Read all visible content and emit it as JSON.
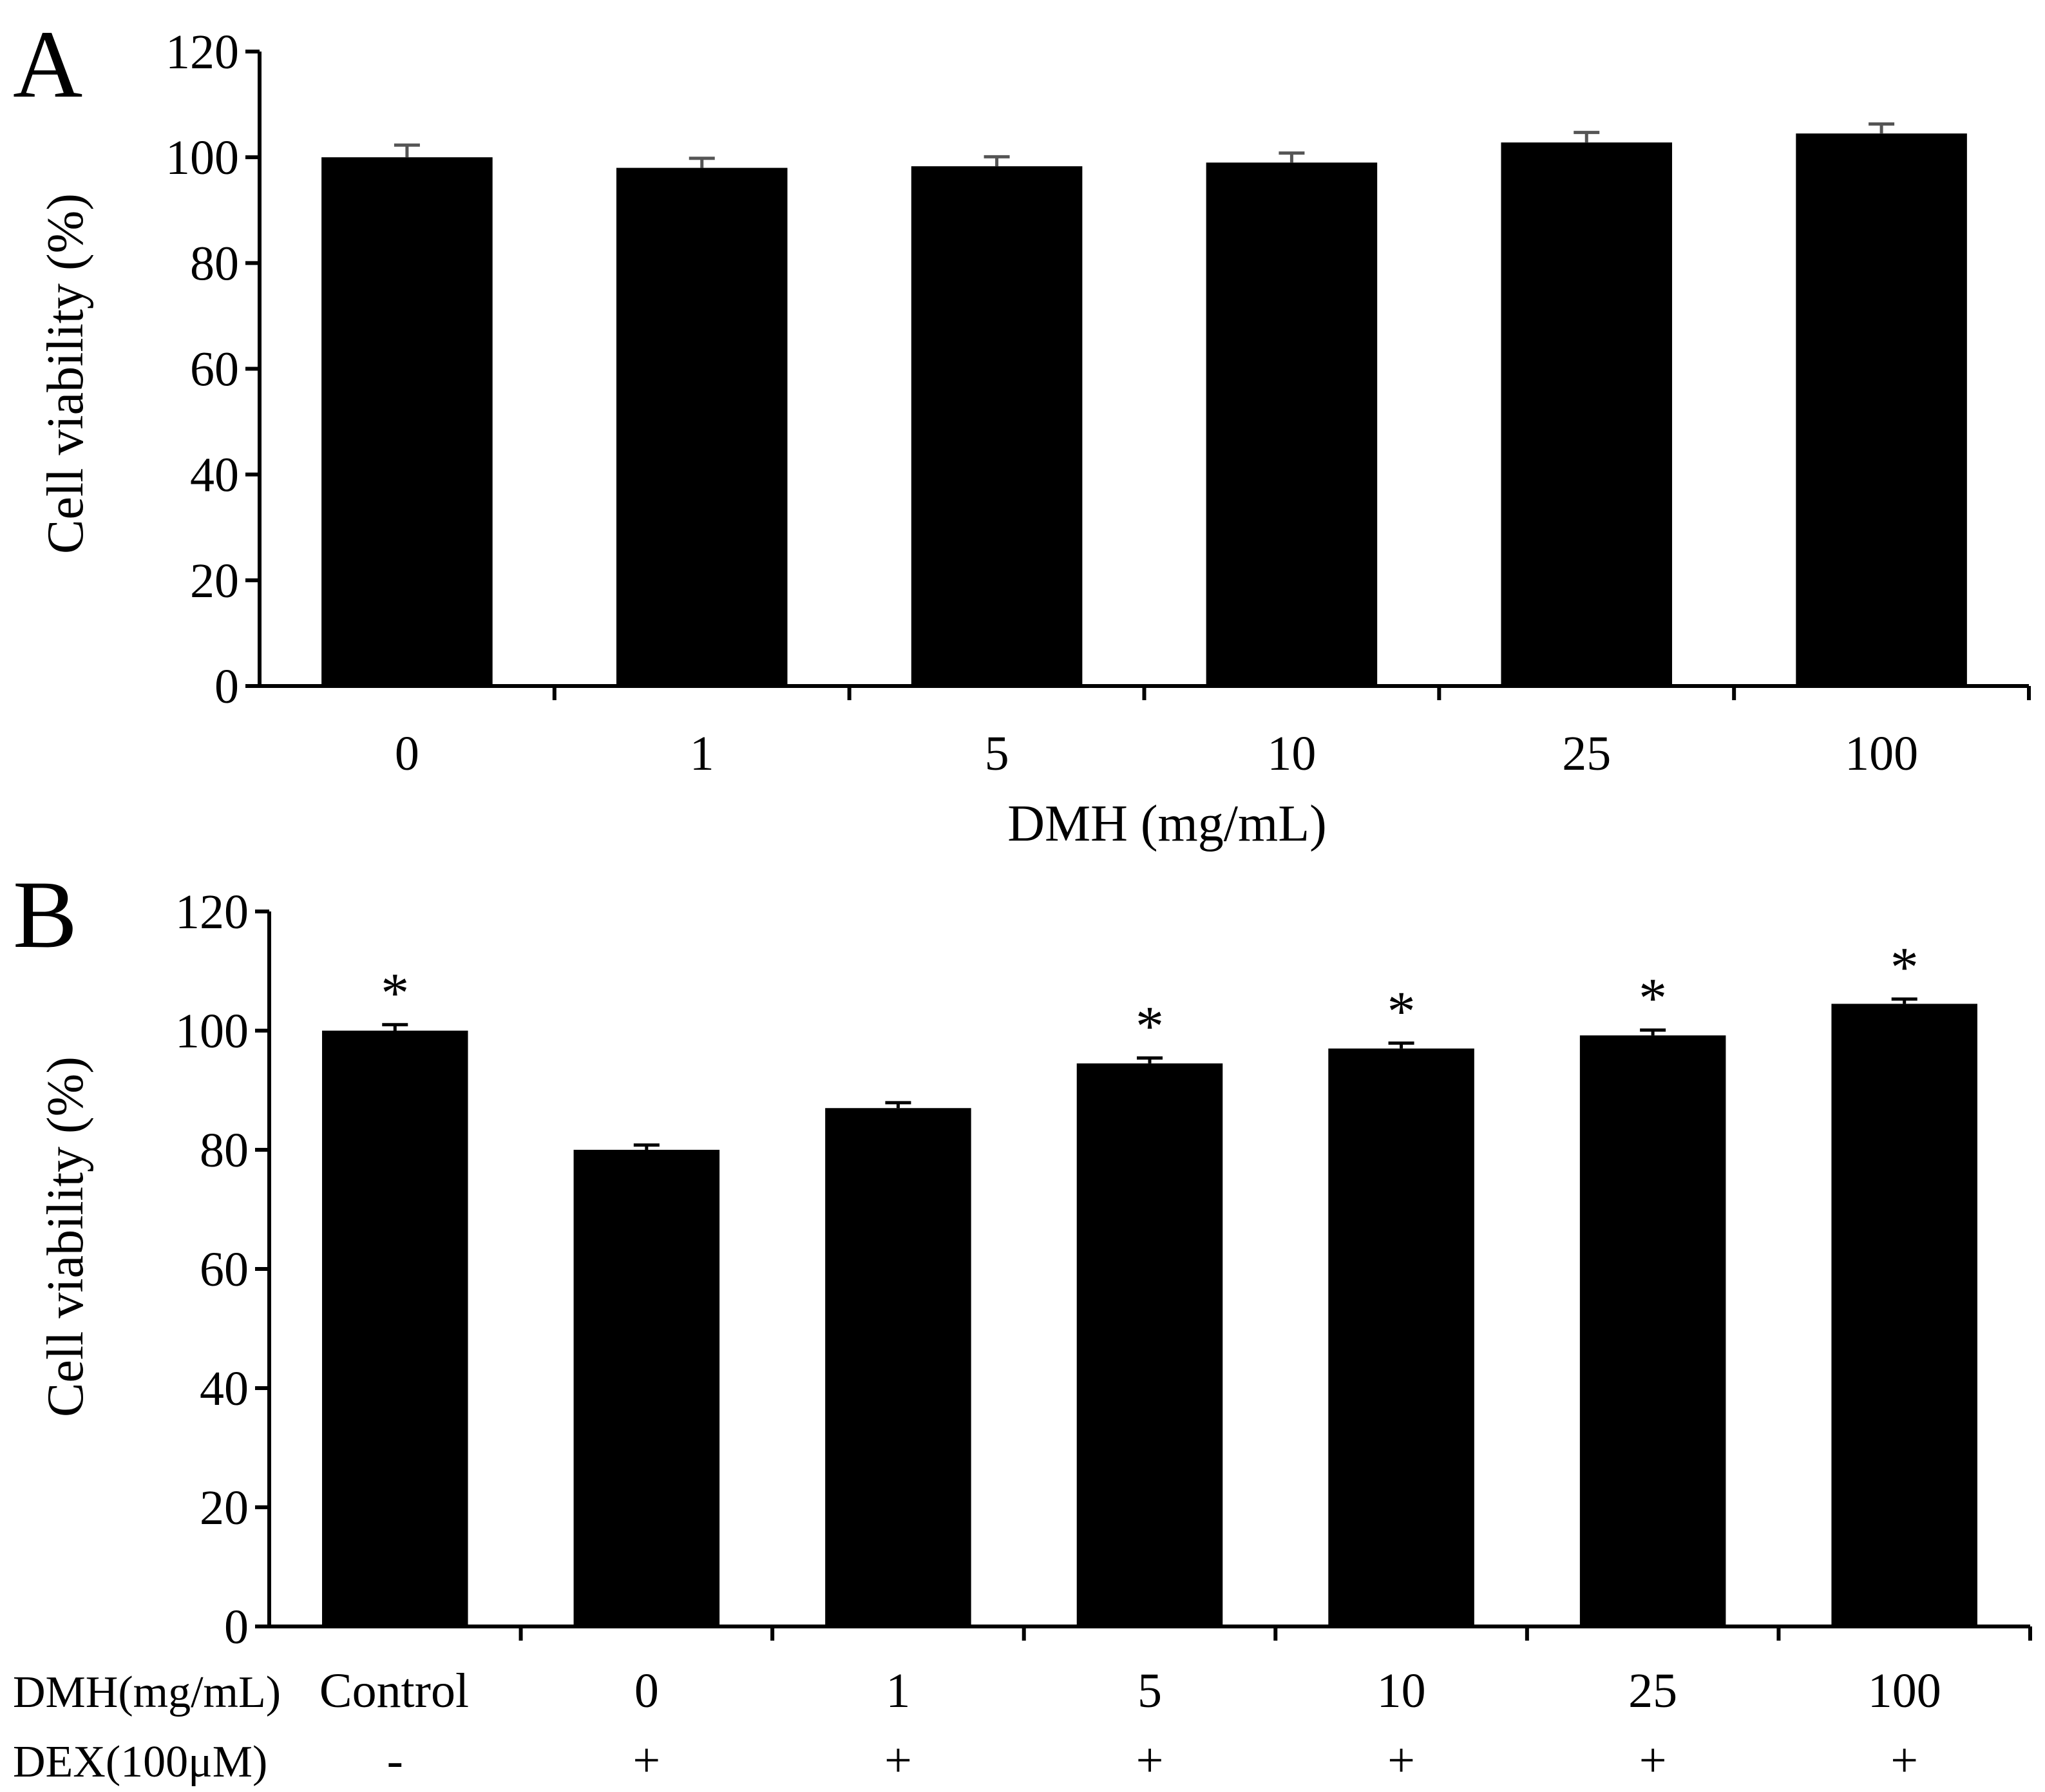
{
  "chart_data": [
    {
      "panel": "A",
      "type": "bar",
      "categories": [
        "0",
        "1",
        "5",
        "10",
        "25",
        "100"
      ],
      "values": [
        100,
        98,
        98.3,
        99,
        102.8,
        104.5
      ],
      "errors": [
        2.3,
        1.8,
        1.8,
        1.8,
        1.9,
        1.8
      ],
      "significance": [
        "",
        "",
        "",
        "",
        "",
        ""
      ],
      "xlabel": "DMH (mg/mL)",
      "ylabel": "Cell viability (%)",
      "ylim": [
        0,
        120
      ],
      "yticks": [
        0,
        20,
        40,
        60,
        80,
        100,
        120
      ],
      "bar_color": "#000000",
      "error_color": "#555555"
    },
    {
      "panel": "B",
      "type": "bar",
      "categories": [
        "Control",
        "0",
        "1",
        "5",
        "10",
        "25",
        "100"
      ],
      "values": [
        100,
        80,
        87,
        94.5,
        97,
        99.2,
        104.5
      ],
      "errors": [
        1.0,
        0.8,
        0.9,
        0.9,
        0.9,
        0.9,
        0.8
      ],
      "significance": [
        "*",
        "",
        "",
        "*",
        "*",
        "*",
        "*"
      ],
      "rows": [
        {
          "label": "DMH(mg/mL)",
          "values": [
            "Control",
            "0",
            "1",
            "5",
            "10",
            "25",
            "100"
          ]
        },
        {
          "label": "DEX(100μM)",
          "values": [
            "-",
            "+",
            "+",
            "+",
            "+",
            "+",
            "+"
          ]
        }
      ],
      "ylabel": "Cell viability (%)",
      "ylim": [
        0,
        120
      ],
      "yticks": [
        0,
        20,
        40,
        60,
        80,
        100,
        120
      ],
      "bar_color": "#000000",
      "error_color": "#000000"
    }
  ]
}
